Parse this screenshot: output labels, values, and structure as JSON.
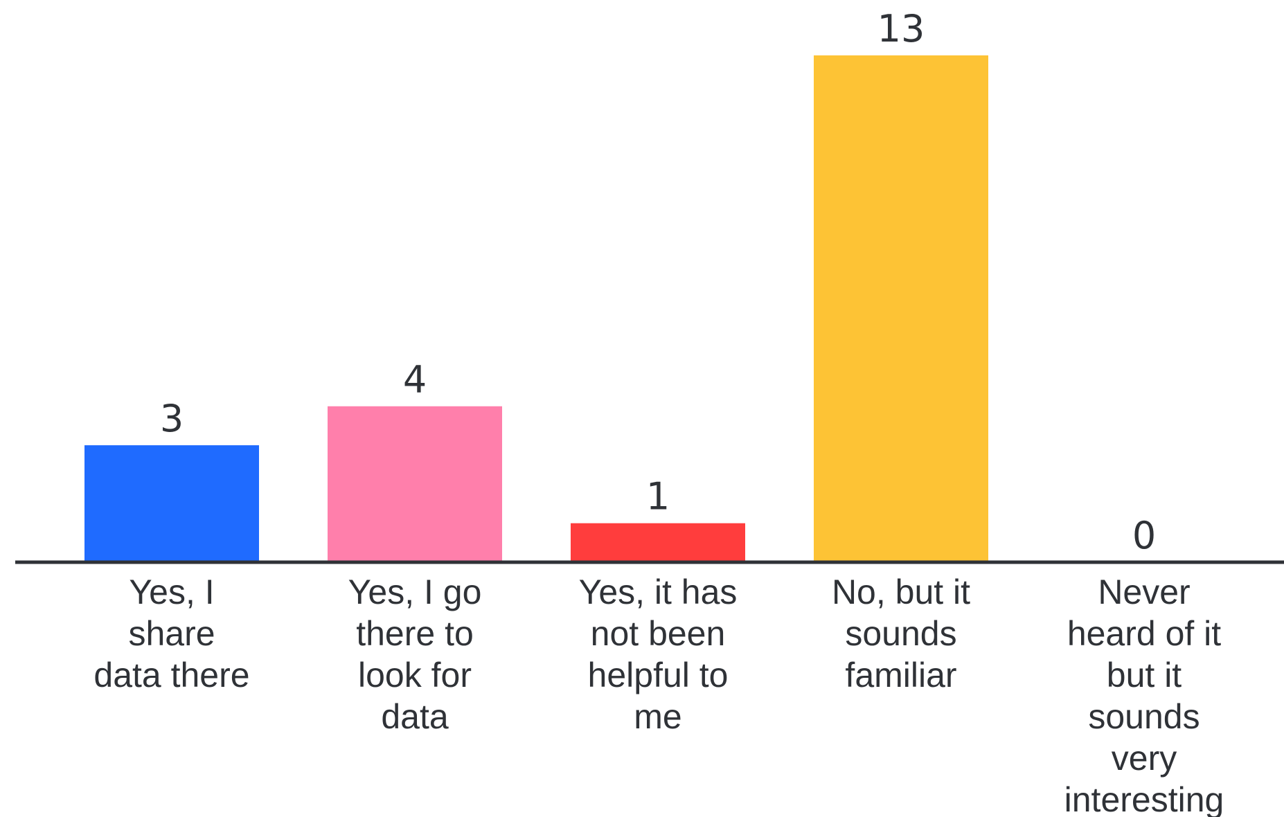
{
  "chart_data": {
    "type": "bar",
    "categories": [
      "Yes, I share data there",
      "Yes, I go there to look for data",
      "Yes, it has not been helpful to me",
      "No, but it sounds familiar",
      "Never heard of it but it sounds very interesting"
    ],
    "category_lines": [
      [
        "Yes, I",
        "share",
        "data there"
      ],
      [
        "Yes, I go",
        "there to",
        "look for",
        "data"
      ],
      [
        "Yes, it has",
        "not been",
        "helpful to",
        "me"
      ],
      [
        "No, but it",
        "sounds",
        "familiar"
      ],
      [
        "Never",
        "heard of it",
        "but it",
        "sounds",
        "very",
        "interesting"
      ]
    ],
    "values": [
      3,
      4,
      1,
      13,
      0
    ],
    "value_labels": [
      "3",
      "4",
      "1",
      "13",
      "0"
    ],
    "colors": [
      "#1f6bff",
      "#ff7fab",
      "#ff3d3d",
      "#fdc335",
      "#c9c9c9"
    ],
    "axis_color": "#2f3237",
    "ylim": [
      0,
      13
    ],
    "title": "",
    "xlabel": "",
    "ylabel": "",
    "grid": false,
    "legend": "none"
  }
}
